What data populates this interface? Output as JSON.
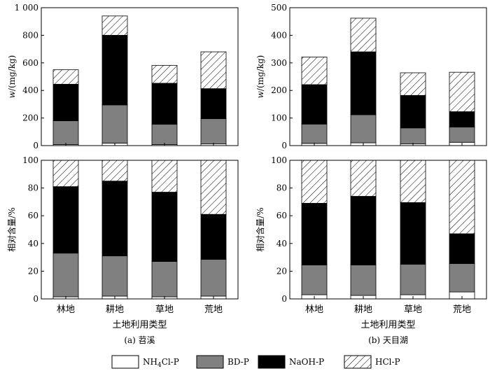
{
  "chart_data": {
    "type": "bar",
    "stacked": true,
    "legend_position": "bottom",
    "categories": [
      "林地",
      "耕地",
      "草地",
      "荒地"
    ],
    "series_order": [
      "NH4Cl-P",
      "BD-P",
      "NaOH-P",
      "HCl-P"
    ],
    "legend": [
      {
        "key": "NH4Cl-P",
        "main": "NH",
        "sub": "4",
        "rest": "Cl-P",
        "fill": "#ffffff"
      },
      {
        "key": "BD-P",
        "main": "BD-P",
        "sub": "",
        "rest": "",
        "fill": "#808080"
      },
      {
        "key": "NaOH-P",
        "main": "NaOH-P",
        "sub": "",
        "rest": "",
        "fill": "#000000"
      },
      {
        "key": "HCl-P",
        "main": "HCl-P",
        "sub": "",
        "rest": "",
        "fill": "hatch"
      }
    ],
    "xlabel": "土地利用类型",
    "ylabel_abs": "w/(mg/kg)",
    "ylabel_rel": "相对含量/%",
    "columns": [
      {
        "caption": "(a)  苕溪",
        "abs": {
          "ylim": [
            0,
            1000
          ],
          "yticks": [
            0,
            200,
            400,
            600,
            800,
            1000
          ],
          "ytick_labels": [
            "0",
            "200",
            "400",
            "600",
            "800",
            "1 000"
          ],
          "series": [
            {
              "name": "NH4Cl-P",
              "values": [
                8,
                18,
                8,
                12
              ]
            },
            {
              "name": "BD-P",
              "values": [
                172,
                277,
                147,
                183
              ]
            },
            {
              "name": "NaOH-P",
              "values": [
                265,
                505,
                297,
                218
              ]
            },
            {
              "name": "HCl-P",
              "values": [
                105,
                140,
                130,
                267
              ]
            }
          ]
        },
        "rel": {
          "ylim": [
            0,
            100
          ],
          "yticks": [
            0,
            20,
            40,
            60,
            80,
            100
          ],
          "ytick_labels": [
            "0",
            "20",
            "40",
            "60",
            "80",
            "100"
          ],
          "series": [
            {
              "name": "NH4Cl-P",
              "values": [
                1.5,
                2,
                1.5,
                2
              ]
            },
            {
              "name": "BD-P",
              "values": [
                31.5,
                29,
                25.5,
                26.5
              ]
            },
            {
              "name": "NaOH-P",
              "values": [
                48,
                54,
                50,
                32.5
              ]
            },
            {
              "name": "HCl-P",
              "values": [
                19,
                15,
                23,
                39
              ]
            }
          ]
        }
      },
      {
        "caption": "(b)  天目湖",
        "abs": {
          "ylim": [
            0,
            500
          ],
          "yticks": [
            0,
            100,
            200,
            300,
            400,
            500
          ],
          "ytick_labels": [
            "0",
            "100",
            "200",
            "300",
            "400",
            "500"
          ],
          "series": [
            {
              "name": "NH4Cl-P",
              "values": [
                8,
                10,
                6,
                12
              ]
            },
            {
              "name": "BD-P",
              "values": [
                70,
                102,
                58,
                55
              ]
            },
            {
              "name": "NaOH-P",
              "values": [
                143,
                228,
                118,
                56
              ]
            },
            {
              "name": "HCl-P",
              "values": [
                100,
                122,
                82,
                143
              ]
            }
          ]
        },
        "rel": {
          "ylim": [
            0,
            100
          ],
          "yticks": [
            0,
            20,
            40,
            60,
            80,
            100
          ],
          "ytick_labels": [
            "0",
            "20",
            "40",
            "60",
            "80",
            "100"
          ],
          "series": [
            {
              "name": "NH4Cl-P",
              "values": [
                3,
                2.5,
                3,
                5
              ]
            },
            {
              "name": "BD-P",
              "values": [
                21.5,
                22,
                22,
                20.5
              ]
            },
            {
              "name": "NaOH-P",
              "values": [
                44.5,
                49.5,
                44.5,
                21.5
              ]
            },
            {
              "name": "HCl-P",
              "values": [
                31,
                26,
                30.5,
                53
              ]
            }
          ]
        }
      }
    ]
  }
}
